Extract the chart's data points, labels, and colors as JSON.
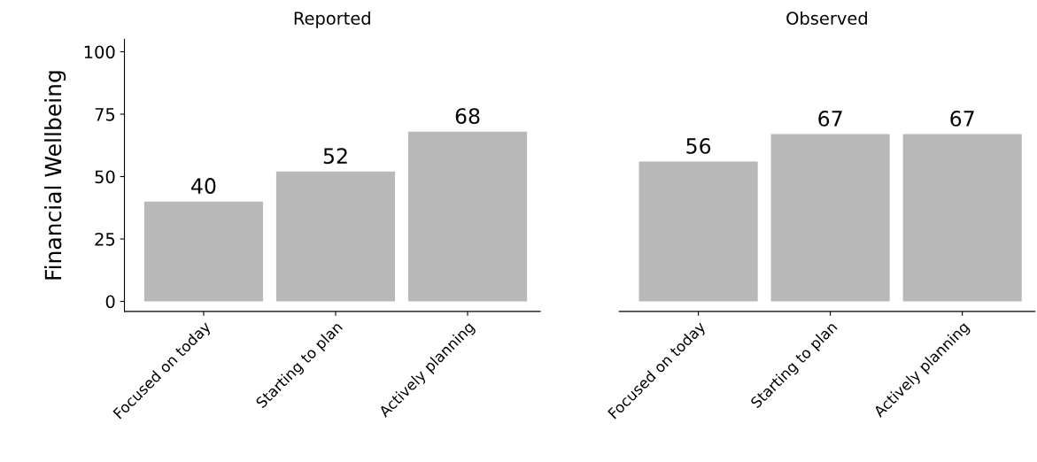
{
  "chart_data": [
    {
      "type": "bar",
      "title": "Reported",
      "ylabel": "Financial Wellbeing",
      "categories": [
        "Focused on today",
        "Starting to plan",
        "Actively planning"
      ],
      "values": [
        40,
        52,
        68
      ],
      "color": "#b8b8b8",
      "ylim": [
        -4,
        105
      ],
      "yticks": [
        0,
        25,
        50,
        75,
        100
      ],
      "data_labels": true,
      "grid": false
    },
    {
      "type": "bar",
      "title": "Observed",
      "categories": [
        "Focused on today",
        "Starting to plan",
        "Actively planning"
      ],
      "values": [
        56,
        67,
        67
      ],
      "color": "#b8b8b8",
      "data_labels": true,
      "grid": false,
      "tick_labels": "x"
    }
  ]
}
